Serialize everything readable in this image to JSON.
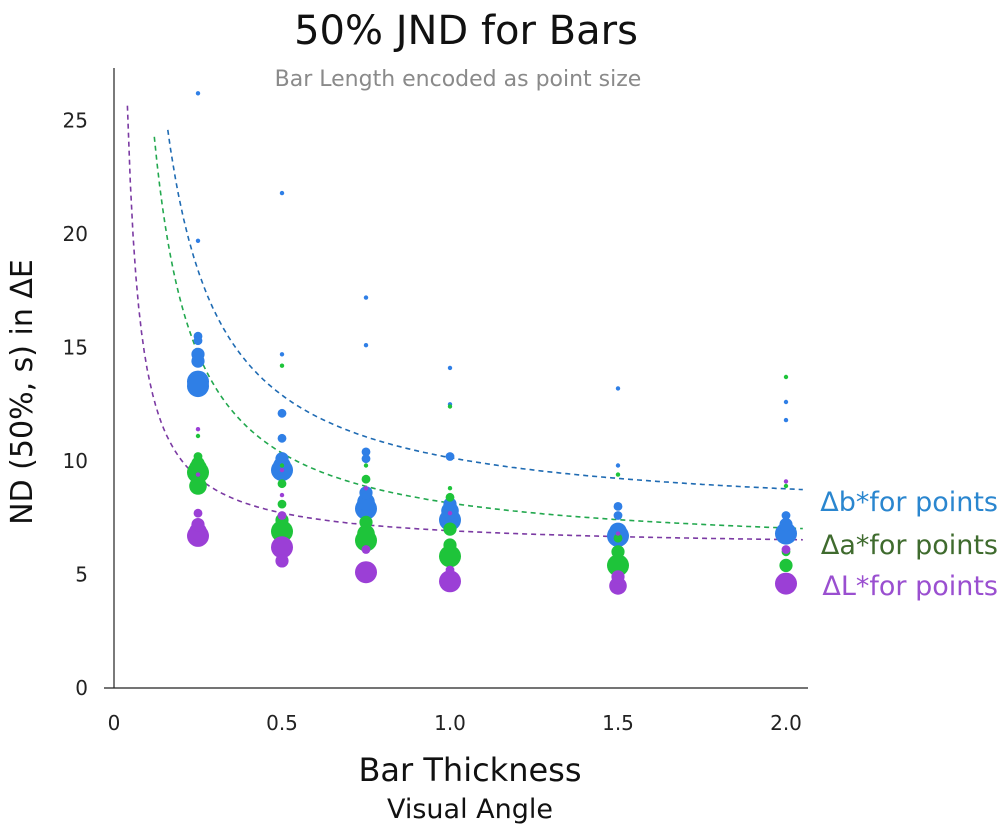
{
  "chart_data": {
    "type": "scatter",
    "title": "50% JND for Bars",
    "subtitle": "Bar Length encoded as point size",
    "xlabel": "Bar Thickness",
    "xlabel_sub": "Visual Angle",
    "ylabel": "ND (50%, s) in ΔE",
    "x_ticks": [
      {
        "label": "0",
        "value": 0
      },
      {
        "label": "0.5",
        "value": 0.5
      },
      {
        "label": "1.0",
        "value": 1.0
      },
      {
        "label": "1.5",
        "value": 1.5
      },
      {
        "label": "2.0",
        "value": 2.0
      }
    ],
    "y_ticks": [
      {
        "label": "0",
        "value": 0
      },
      {
        "label": "5",
        "value": 5
      },
      {
        "label": "10",
        "value": 10
      },
      {
        "label": "15",
        "value": 15
      },
      {
        "label": "20",
        "value": 20
      },
      {
        "label": "25",
        "value": 25
      }
    ],
    "grid": false,
    "legend_placement": "right",
    "size_encoding": "Bar Length",
    "series": [
      {
        "name": "Δb*for points",
        "color": "#2f7fe6",
        "curve_color": "#1f6bb3",
        "legend_text": "Δb*for points",
        "legend_color": "#2a86cf",
        "points": [
          {
            "x": 0.25,
            "y": 26.2,
            "size": 1
          },
          {
            "x": 0.25,
            "y": 19.7,
            "size": 1
          },
          {
            "x": 0.25,
            "y": 15.5,
            "size": 2
          },
          {
            "x": 0.25,
            "y": 15.3,
            "size": 2
          },
          {
            "x": 0.25,
            "y": 14.7,
            "size": 3
          },
          {
            "x": 0.25,
            "y": 14.4,
            "size": 3
          },
          {
            "x": 0.25,
            "y": 13.5,
            "size": 5
          },
          {
            "x": 0.25,
            "y": 13.3,
            "size": 5
          },
          {
            "x": 0.5,
            "y": 21.8,
            "size": 1
          },
          {
            "x": 0.5,
            "y": 14.7,
            "size": 1
          },
          {
            "x": 0.5,
            "y": 12.1,
            "size": 2
          },
          {
            "x": 0.5,
            "y": 11.0,
            "size": 2
          },
          {
            "x": 0.5,
            "y": 10.1,
            "size": 3
          },
          {
            "x": 0.5,
            "y": 9.8,
            "size": 4
          },
          {
            "x": 0.5,
            "y": 9.6,
            "size": 5
          },
          {
            "x": 0.75,
            "y": 17.2,
            "size": 1
          },
          {
            "x": 0.75,
            "y": 15.1,
            "size": 1
          },
          {
            "x": 0.75,
            "y": 10.4,
            "size": 2
          },
          {
            "x": 0.75,
            "y": 10.1,
            "size": 2
          },
          {
            "x": 0.75,
            "y": 8.6,
            "size": 3
          },
          {
            "x": 0.75,
            "y": 8.2,
            "size": 4
          },
          {
            "x": 0.75,
            "y": 7.9,
            "size": 5
          },
          {
            "x": 1.0,
            "y": 14.1,
            "size": 1
          },
          {
            "x": 1.0,
            "y": 12.5,
            "size": 1
          },
          {
            "x": 1.0,
            "y": 10.2,
            "size": 2
          },
          {
            "x": 1.0,
            "y": 8.1,
            "size": 3
          },
          {
            "x": 1.0,
            "y": 7.8,
            "size": 4
          },
          {
            "x": 1.0,
            "y": 7.4,
            "size": 5
          },
          {
            "x": 1.5,
            "y": 13.2,
            "size": 1
          },
          {
            "x": 1.5,
            "y": 9.8,
            "size": 1
          },
          {
            "x": 1.5,
            "y": 8.0,
            "size": 2
          },
          {
            "x": 1.5,
            "y": 7.6,
            "size": 2
          },
          {
            "x": 1.5,
            "y": 6.9,
            "size": 4
          },
          {
            "x": 1.5,
            "y": 6.7,
            "size": 5
          },
          {
            "x": 2.0,
            "y": 12.6,
            "size": 1
          },
          {
            "x": 2.0,
            "y": 11.8,
            "size": 1
          },
          {
            "x": 2.0,
            "y": 7.6,
            "size": 2
          },
          {
            "x": 2.0,
            "y": 7.2,
            "size": 3
          },
          {
            "x": 2.0,
            "y": 6.8,
            "size": 5
          }
        ],
        "curve": {
          "a": 7.4,
          "b": 2.75,
          "x_start": 0.16,
          "x_end": 2.05
        }
      },
      {
        "name": "Δa*for points",
        "color": "#1ec43a",
        "curve_color": "#22a84e",
        "legend_text": "Δa*for points",
        "legend_color": "#3f6b2e",
        "points": [
          {
            "x": 0.25,
            "y": 11.1,
            "size": 1
          },
          {
            "x": 0.25,
            "y": 10.2,
            "size": 2
          },
          {
            "x": 0.25,
            "y": 9.9,
            "size": 3
          },
          {
            "x": 0.25,
            "y": 9.7,
            "size": 4
          },
          {
            "x": 0.25,
            "y": 9.5,
            "size": 5
          },
          {
            "x": 0.25,
            "y": 8.9,
            "size": 4
          },
          {
            "x": 0.5,
            "y": 14.2,
            "size": 1
          },
          {
            "x": 0.5,
            "y": 9.8,
            "size": 1
          },
          {
            "x": 0.5,
            "y": 9.0,
            "size": 2
          },
          {
            "x": 0.5,
            "y": 8.1,
            "size": 2
          },
          {
            "x": 0.5,
            "y": 7.4,
            "size": 3
          },
          {
            "x": 0.5,
            "y": 6.9,
            "size": 5
          },
          {
            "x": 0.75,
            "y": 9.8,
            "size": 1
          },
          {
            "x": 0.75,
            "y": 9.2,
            "size": 2
          },
          {
            "x": 0.75,
            "y": 7.3,
            "size": 3
          },
          {
            "x": 0.75,
            "y": 6.8,
            "size": 4
          },
          {
            "x": 0.75,
            "y": 6.5,
            "size": 5
          },
          {
            "x": 1.0,
            "y": 12.4,
            "size": 1
          },
          {
            "x": 1.0,
            "y": 8.8,
            "size": 1
          },
          {
            "x": 1.0,
            "y": 8.4,
            "size": 2
          },
          {
            "x": 1.0,
            "y": 7.0,
            "size": 3
          },
          {
            "x": 1.0,
            "y": 6.3,
            "size": 3
          },
          {
            "x": 1.0,
            "y": 5.8,
            "size": 5
          },
          {
            "x": 1.5,
            "y": 9.4,
            "size": 1
          },
          {
            "x": 1.5,
            "y": 6.6,
            "size": 2
          },
          {
            "x": 1.5,
            "y": 6.0,
            "size": 3
          },
          {
            "x": 1.5,
            "y": 5.4,
            "size": 5
          },
          {
            "x": 2.0,
            "y": 13.7,
            "size": 1
          },
          {
            "x": 2.0,
            "y": 8.9,
            "size": 1
          },
          {
            "x": 2.0,
            "y": 6.0,
            "size": 2
          },
          {
            "x": 2.0,
            "y": 5.4,
            "size": 3
          }
        ],
        "curve": {
          "a": 5.95,
          "b": 2.2,
          "x_start": 0.12,
          "x_end": 2.05
        }
      },
      {
        "name": "ΔL*for points",
        "color": "#9b3fd6",
        "curve_color": "#7b3aa3",
        "legend_text": "ΔL*for points",
        "legend_color": "#9a4fd0",
        "points": [
          {
            "x": 0.25,
            "y": 11.4,
            "size": 1
          },
          {
            "x": 0.25,
            "y": 9.4,
            "size": 1
          },
          {
            "x": 0.25,
            "y": 7.7,
            "size": 2
          },
          {
            "x": 0.25,
            "y": 7.2,
            "size": 3
          },
          {
            "x": 0.25,
            "y": 6.9,
            "size": 4
          },
          {
            "x": 0.25,
            "y": 6.7,
            "size": 5
          },
          {
            "x": 0.5,
            "y": 9.6,
            "size": 1
          },
          {
            "x": 0.5,
            "y": 8.5,
            "size": 1
          },
          {
            "x": 0.5,
            "y": 7.6,
            "size": 2
          },
          {
            "x": 0.5,
            "y": 6.2,
            "size": 5
          },
          {
            "x": 0.5,
            "y": 5.6,
            "size": 3
          },
          {
            "x": 0.75,
            "y": 8.8,
            "size": 1
          },
          {
            "x": 0.75,
            "y": 6.1,
            "size": 2
          },
          {
            "x": 0.75,
            "y": 5.1,
            "size": 5
          },
          {
            "x": 1.0,
            "y": 7.7,
            "size": 1
          },
          {
            "x": 1.0,
            "y": 5.2,
            "size": 2
          },
          {
            "x": 1.0,
            "y": 4.7,
            "size": 5
          },
          {
            "x": 1.5,
            "y": 6.8,
            "size": 1
          },
          {
            "x": 1.5,
            "y": 4.9,
            "size": 3
          },
          {
            "x": 1.5,
            "y": 4.5,
            "size": 4
          },
          {
            "x": 2.0,
            "y": 9.1,
            "size": 1
          },
          {
            "x": 2.0,
            "y": 6.1,
            "size": 2
          },
          {
            "x": 2.0,
            "y": 4.6,
            "size": 5
          }
        ],
        "curve": {
          "a": 6.15,
          "b": 0.78,
          "x_start": 0.04,
          "x_end": 2.05
        }
      }
    ]
  }
}
